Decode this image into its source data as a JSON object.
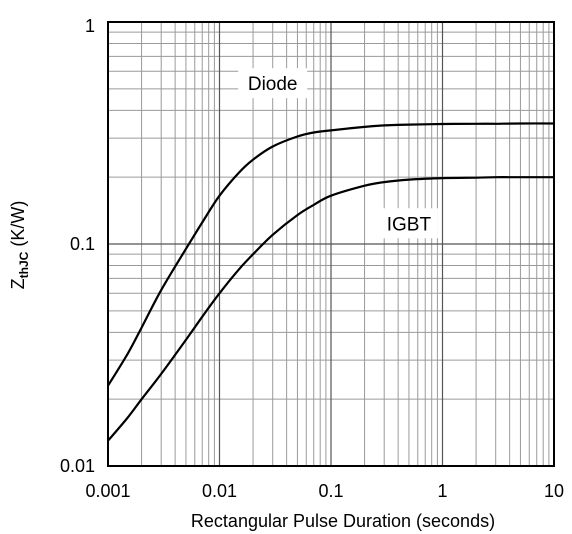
{
  "chart_data": {
    "type": "line",
    "xscale": "log",
    "yscale": "log",
    "xlim": [
      0.001,
      10
    ],
    "ylim": [
      0.01,
      1
    ],
    "xlabel": "Rectangular Pulse Duration (seconds)",
    "ylabel": {
      "main": "Z",
      "subscript": "thJC",
      "unit": " (K/W)"
    },
    "x_ticks": [
      {
        "value": 0.001,
        "label": "0.001"
      },
      {
        "value": 0.01,
        "label": "0.01"
      },
      {
        "value": 0.1,
        "label": "0.1"
      },
      {
        "value": 1,
        "label": "1"
      },
      {
        "value": 10,
        "label": "10"
      }
    ],
    "y_ticks": [
      {
        "value": 0.01,
        "label": "0.01"
      },
      {
        "value": 0.1,
        "label": "0.1"
      },
      {
        "value": 1,
        "label": "1"
      }
    ],
    "grid": true,
    "series": [
      {
        "name": "Diode",
        "color": "#000000",
        "x": [
          0.001,
          0.0015,
          0.002,
          0.003,
          0.005,
          0.007,
          0.01,
          0.015,
          0.02,
          0.03,
          0.05,
          0.07,
          0.1,
          0.2,
          0.3,
          0.5,
          1,
          2,
          3,
          5,
          10
        ],
        "y": [
          0.023,
          0.032,
          0.042,
          0.062,
          0.095,
          0.125,
          0.165,
          0.21,
          0.24,
          0.275,
          0.305,
          0.318,
          0.325,
          0.337,
          0.342,
          0.345,
          0.347,
          0.348,
          0.348,
          0.349,
          0.349
        ]
      },
      {
        "name": "IGBT",
        "color": "#000000",
        "x": [
          0.001,
          0.0015,
          0.002,
          0.003,
          0.005,
          0.007,
          0.01,
          0.015,
          0.02,
          0.03,
          0.05,
          0.07,
          0.1,
          0.2,
          0.3,
          0.5,
          1,
          2,
          3,
          5,
          10
        ],
        "y": [
          0.013,
          0.0165,
          0.02,
          0.026,
          0.037,
          0.047,
          0.06,
          0.077,
          0.09,
          0.11,
          0.135,
          0.15,
          0.165,
          0.183,
          0.19,
          0.195,
          0.198,
          0.199,
          0.2,
          0.2,
          0.2
        ]
      }
    ],
    "series_labels": [
      {
        "series": "Diode",
        "text": "Diode",
        "x": 0.03,
        "y": 0.53
      },
      {
        "series": "IGBT",
        "text": "IGBT",
        "x": 0.5,
        "y": 0.124
      }
    ]
  }
}
